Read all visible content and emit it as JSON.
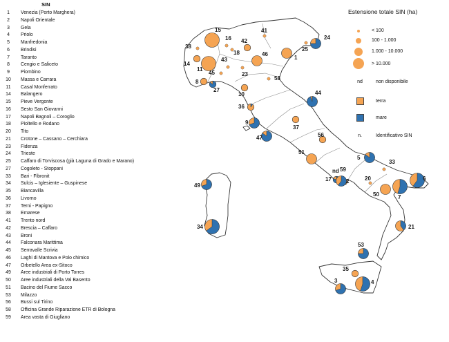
{
  "list": {
    "title": "SIN",
    "sites": [
      {
        "id": "1",
        "name": "Venezia (Porto Marghera)"
      },
      {
        "id": "2",
        "name": "Napoli Orientale"
      },
      {
        "id": "3",
        "name": "Gela"
      },
      {
        "id": "4",
        "name": "Priolo"
      },
      {
        "id": "5",
        "name": "Manfredonia"
      },
      {
        "id": "6",
        "name": "Brindisi"
      },
      {
        "id": "7",
        "name": "Taranto"
      },
      {
        "id": "8",
        "name": "Cengio e Saliceto"
      },
      {
        "id": "9",
        "name": "Piombino"
      },
      {
        "id": "10",
        "name": "Massa e Carrara"
      },
      {
        "id": "11",
        "name": "Casal Monferrato"
      },
      {
        "id": "14",
        "name": "Balangero"
      },
      {
        "id": "15",
        "name": "Pieve Vergonte"
      },
      {
        "id": "16",
        "name": "Sesto San Giovanni"
      },
      {
        "id": "17",
        "name": "Napoli Bagnoli – Coroglio"
      },
      {
        "id": "18",
        "name": "Pioltello e Rodano"
      },
      {
        "id": "20",
        "name": "Tito"
      },
      {
        "id": "21",
        "name": "Crotone – Cassano –  Cerchiara"
      },
      {
        "id": "23",
        "name": "Fidenza"
      },
      {
        "id": "24",
        "name": "Trieste"
      },
      {
        "id": "25",
        "name": "Caffaro di Torviscosa (già Laguna di Grado e Marano)"
      },
      {
        "id": "27",
        "name": "Cogoleto - Stoppani"
      },
      {
        "id": "33",
        "name": "Bari - Fibronit"
      },
      {
        "id": "34",
        "name": "Sulcis – Iglesiente  – Guspinese"
      },
      {
        "id": "35",
        "name": "Biancavilla"
      },
      {
        "id": "36",
        "name": "Livorno"
      },
      {
        "id": "37",
        "name": "Terni - Papigno"
      },
      {
        "id": "38",
        "name": "Emarese"
      },
      {
        "id": "41",
        "name": "Trento nord"
      },
      {
        "id": "42",
        "name": "Brescia – Caffaro"
      },
      {
        "id": "43",
        "name": "Broni"
      },
      {
        "id": "44",
        "name": "Falconara Marittima"
      },
      {
        "id": "45",
        "name": "Serravalle Scrivia"
      },
      {
        "id": "46",
        "name": "Laghi di Mantova e Polo chimico"
      },
      {
        "id": "47",
        "name": "Orbetello Area ex-Sitoco"
      },
      {
        "id": "49",
        "name": "Aree industriali di Porto Torres"
      },
      {
        "id": "50",
        "name": "Aree industriali della Val Basento"
      },
      {
        "id": "51",
        "name": "Bacino del Fiume Sacco"
      },
      {
        "id": "53",
        "name": "Milazzo"
      },
      {
        "id": "56",
        "name": "Bussi sul Tirino"
      },
      {
        "id": "58",
        "name": "Officina  Grande Riparazione ETR di Bologna"
      },
      {
        "id": "59",
        "name": "Area vasta di Giugliano"
      }
    ]
  },
  "map": {
    "colors": {
      "land": "#f5a453",
      "sea": "#2f72b0",
      "outline": "#333333",
      "region_border": "#8a8a8a"
    },
    "labels": [
      {
        "id": "15",
        "text": "15"
      },
      {
        "id": "16",
        "text": "16"
      },
      {
        "id": "41",
        "text": "41"
      },
      {
        "id": "24",
        "text": "24"
      },
      {
        "id": "38",
        "text": "38"
      },
      {
        "id": "42",
        "text": "42"
      },
      {
        "id": "18",
        "text": "18"
      },
      {
        "id": "46",
        "text": "46"
      },
      {
        "id": "25",
        "text": "25"
      },
      {
        "id": "14",
        "text": "14"
      },
      {
        "id": "43",
        "text": "43"
      },
      {
        "id": "1",
        "text": "1"
      },
      {
        "id": "11",
        "text": "11"
      },
      {
        "id": "45",
        "text": "45"
      },
      {
        "id": "23",
        "text": "23"
      },
      {
        "id": "58",
        "text": "58"
      },
      {
        "id": "8",
        "text": "8"
      },
      {
        "id": "27",
        "text": "27"
      },
      {
        "id": "10",
        "text": "10"
      },
      {
        "id": "44",
        "text": "44"
      },
      {
        "id": "36",
        "text": "36"
      },
      {
        "id": "9",
        "text": "9"
      },
      {
        "id": "37",
        "text": "37"
      },
      {
        "id": "56",
        "text": "56"
      },
      {
        "id": "47",
        "text": "47"
      },
      {
        "id": "51",
        "text": "51"
      },
      {
        "id": "5",
        "text": "5"
      },
      {
        "id": "33",
        "text": "33"
      },
      {
        "id": "59",
        "text": "59"
      },
      {
        "id": "17",
        "text": "17"
      },
      {
        "id": "2",
        "text": "2"
      },
      {
        "id": "20",
        "text": "20"
      },
      {
        "id": "6",
        "text": "6"
      },
      {
        "id": "49",
        "text": "49"
      },
      {
        "id": "50",
        "text": "50"
      },
      {
        "id": "7",
        "text": "7"
      },
      {
        "id": "34",
        "text": "34"
      },
      {
        "id": "21",
        "text": "21"
      },
      {
        "id": "53",
        "text": "53"
      },
      {
        "id": "35",
        "text": "35"
      },
      {
        "id": "3",
        "text": "3"
      },
      {
        "id": "4",
        "text": "4"
      }
    ],
    "nd_label": "nd",
    "sites": [
      {
        "id": "15",
        "size_class": "> 10.000",
        "sea_fraction": 0
      },
      {
        "id": "16",
        "size_class": "< 100",
        "sea_fraction": 0
      },
      {
        "id": "41",
        "size_class": "< 100",
        "sea_fraction": 0
      },
      {
        "id": "24",
        "size_class": "1.000 - 10.000",
        "sea_fraction": 0.75
      },
      {
        "id": "38",
        "size_class": "< 100",
        "sea_fraction": 0
      },
      {
        "id": "42",
        "size_class": "100 - 1.000",
        "sea_fraction": 0
      },
      {
        "id": "18",
        "size_class": "< 100",
        "sea_fraction": 0
      },
      {
        "id": "46",
        "size_class": "1.000 - 10.000",
        "sea_fraction": 0
      },
      {
        "id": "25",
        "size_class": "< 100",
        "sea_fraction": 0
      },
      {
        "id": "14",
        "size_class": "100 - 1.000",
        "sea_fraction": 0
      },
      {
        "id": "43",
        "size_class": "< 100",
        "sea_fraction": 0
      },
      {
        "id": "1",
        "size_class": "1.000 - 10.000",
        "sea_fraction": 0
      },
      {
        "id": "11",
        "size_class": "> 10.000",
        "sea_fraction": 0
      },
      {
        "id": "45",
        "size_class": "< 100",
        "sea_fraction": 0
      },
      {
        "id": "23",
        "size_class": "< 100",
        "sea_fraction": 0
      },
      {
        "id": "58",
        "size_class": "< 100",
        "sea_fraction": 0
      },
      {
        "id": "8",
        "size_class": "100 - 1.000",
        "sea_fraction": 0
      },
      {
        "id": "27",
        "size_class": "100 - 1.000",
        "sea_fraction": 0.85
      },
      {
        "id": "10",
        "size_class": "100 - 1.000",
        "sea_fraction": 0
      },
      {
        "id": "44",
        "size_class": "1.000 - 10.000",
        "sea_fraction": 0.95
      },
      {
        "id": "36",
        "size_class": "100 - 1.000",
        "sea_fraction": 0.1
      },
      {
        "id": "9",
        "size_class": "1.000 - 10.000",
        "sea_fraction": 0.7
      },
      {
        "id": "37",
        "size_class": "100 - 1.000",
        "sea_fraction": 0
      },
      {
        "id": "56",
        "size_class": "100 - 1.000",
        "sea_fraction": 0
      },
      {
        "id": "47",
        "size_class": "1.000 - 10.000",
        "sea_fraction": 0.85
      },
      {
        "id": "51",
        "size_class": "1.000 - 10.000",
        "sea_fraction": 0
      },
      {
        "id": "5",
        "size_class": "1.000 - 10.000",
        "sea_fraction": 0.85
      },
      {
        "id": "33",
        "size_class": "< 100",
        "sea_fraction": 0
      },
      {
        "id": "59",
        "size_class": "100 - 1.000",
        "sea_fraction": 0
      },
      {
        "id": "17",
        "size_class": "100 - 1.000",
        "sea_fraction": 0.8
      },
      {
        "id": "2",
        "size_class": "1.000 - 10.000",
        "sea_fraction": 0.6
      },
      {
        "id": "20",
        "size_class": "< 100",
        "sea_fraction": 0
      },
      {
        "id": "6",
        "size_class": "> 10.000",
        "sea_fraction": 0.6
      },
      {
        "id": "49",
        "size_class": "1.000 - 10.000",
        "sea_fraction": 0.7
      },
      {
        "id": "50",
        "size_class": "1.000 - 10.000",
        "sea_fraction": 0
      },
      {
        "id": "7",
        "size_class": "> 10.000",
        "sea_fraction": 0.55
      },
      {
        "id": "34",
        "size_class": "> 10.000",
        "sea_fraction": 0.65
      },
      {
        "id": "21",
        "size_class": "1.000 - 10.000",
        "sea_fraction": 0.4
      },
      {
        "id": "53",
        "size_class": "1.000 - 10.000",
        "sea_fraction": 0.75
      },
      {
        "id": "35",
        "size_class": "100 - 1.000",
        "sea_fraction": 0
      },
      {
        "id": "3",
        "size_class": "1.000 - 10.000",
        "sea_fraction": 0.7
      },
      {
        "id": "4",
        "size_class": "> 10.000",
        "sea_fraction": 0.55
      }
    ]
  },
  "size_legend": {
    "title": "Estensione totale SIN (ha)",
    "classes": [
      {
        "label": "< 100"
      },
      {
        "label": "100 - 1.000"
      },
      {
        "label": "1.000 - 10.000"
      },
      {
        "label": "> 10.000"
      }
    ]
  },
  "type_legend": {
    "nd_key": "nd",
    "nd_label": "non disponibile",
    "land_label": "terra",
    "sea_label": "mare",
    "id_key": "n.",
    "id_label": "Identificativo SIN"
  }
}
